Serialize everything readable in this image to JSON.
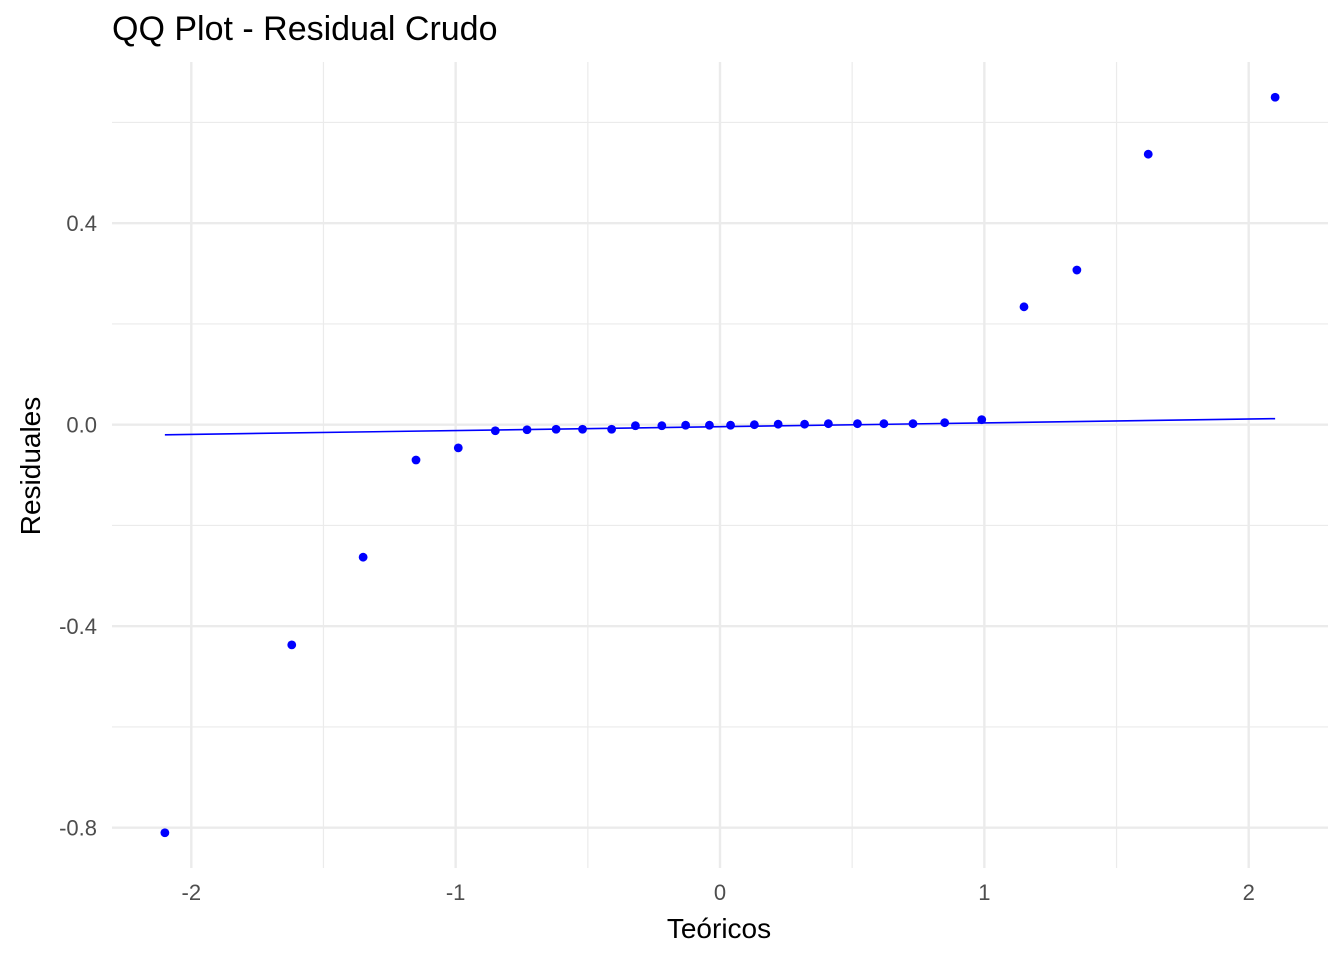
{
  "chart_data": {
    "type": "scatter",
    "title": "QQ Plot - Residual Crudo",
    "xlabel": "Teóricos",
    "ylabel": "Residuales",
    "xlim": [
      -2.3,
      2.3
    ],
    "ylim": [
      -0.88,
      0.72
    ],
    "x_ticks": [
      -2,
      -1,
      0,
      1,
      2
    ],
    "x_tick_labels": [
      "-2",
      "-1",
      "0",
      "1",
      "2"
    ],
    "y_ticks": [
      -0.8,
      -0.4,
      0.0,
      0.4
    ],
    "y_tick_labels": [
      "-0.8",
      "-0.4",
      "0.0",
      "0.4"
    ],
    "x_minor_ticks": [
      -1.5,
      -0.5,
      0.5,
      1.5
    ],
    "y_minor_ticks": [
      -0.6,
      -0.2,
      0.2,
      0.6
    ],
    "grid": true,
    "point_color": "#0000ff",
    "line_color": "#0000ff",
    "points": [
      {
        "x": -2.1,
        "y": -0.81
      },
      {
        "x": -1.62,
        "y": -0.437
      },
      {
        "x": -1.35,
        "y": -0.263
      },
      {
        "x": -1.15,
        "y": -0.07
      },
      {
        "x": -0.99,
        "y": -0.046
      },
      {
        "x": -0.85,
        "y": -0.012
      },
      {
        "x": -0.73,
        "y": -0.01
      },
      {
        "x": -0.62,
        "y": -0.009
      },
      {
        "x": -0.52,
        "y": -0.009
      },
      {
        "x": -0.41,
        "y": -0.009
      },
      {
        "x": -0.32,
        "y": -0.002
      },
      {
        "x": -0.22,
        "y": -0.002
      },
      {
        "x": -0.13,
        "y": -0.001
      },
      {
        "x": -0.04,
        "y": -0.001
      },
      {
        "x": 0.04,
        "y": -0.001
      },
      {
        "x": 0.13,
        "y": 0.0
      },
      {
        "x": 0.22,
        "y": 0.001
      },
      {
        "x": 0.32,
        "y": 0.001
      },
      {
        "x": 0.41,
        "y": 0.002
      },
      {
        "x": 0.52,
        "y": 0.002
      },
      {
        "x": 0.62,
        "y": 0.002
      },
      {
        "x": 0.73,
        "y": 0.002
      },
      {
        "x": 0.85,
        "y": 0.004
      },
      {
        "x": 0.99,
        "y": 0.01
      },
      {
        "x": 1.15,
        "y": 0.234
      },
      {
        "x": 1.35,
        "y": 0.307
      },
      {
        "x": 1.62,
        "y": 0.537
      },
      {
        "x": 2.1,
        "y": 0.65
      }
    ],
    "reference_line": {
      "x": [
        -2.1,
        2.1
      ],
      "y": [
        -0.02,
        0.012
      ]
    }
  }
}
